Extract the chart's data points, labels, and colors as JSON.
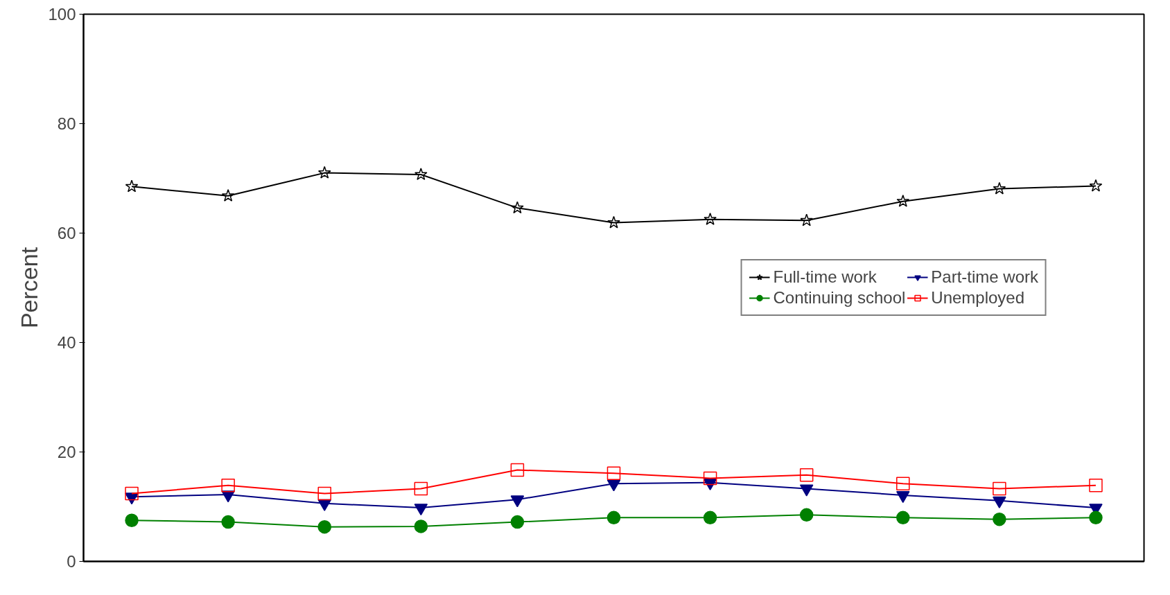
{
  "chart_data": {
    "type": "line",
    "ylabel": "Percent",
    "categories": [
      null,
      null,
      null,
      null,
      null,
      null,
      null,
      null,
      null,
      null,
      null
    ],
    "ylim": [
      0,
      100
    ],
    "yticks": [
      0,
      20,
      40,
      60,
      80,
      100
    ],
    "grid": false,
    "legend": "right",
    "series": [
      {
        "name": "Full-time work",
        "color": "#000000",
        "marker": "star",
        "values": [
          68.5,
          66.8,
          71.0,
          70.7,
          64.6,
          61.9,
          62.5,
          62.3,
          65.8,
          68.1,
          68.6
        ]
      },
      {
        "name": "Part-time work",
        "color": "#000080",
        "marker": "triangle",
        "values": [
          11.8,
          12.2,
          10.6,
          9.8,
          11.3,
          14.2,
          14.4,
          13.3,
          12.1,
          11.1,
          9.8
        ]
      },
      {
        "name": "Continuing school",
        "color": "#008000",
        "marker": "circle",
        "values": [
          7.5,
          7.2,
          6.3,
          6.4,
          7.2,
          8.0,
          8.0,
          8.5,
          8.0,
          7.7,
          8.0
        ]
      },
      {
        "name": "Unemployed",
        "color": "#ff0000",
        "marker": "square",
        "values": [
          12.4,
          13.9,
          12.4,
          13.3,
          16.7,
          16.1,
          15.2,
          15.8,
          14.2,
          13.3,
          13.9
        ]
      }
    ]
  }
}
